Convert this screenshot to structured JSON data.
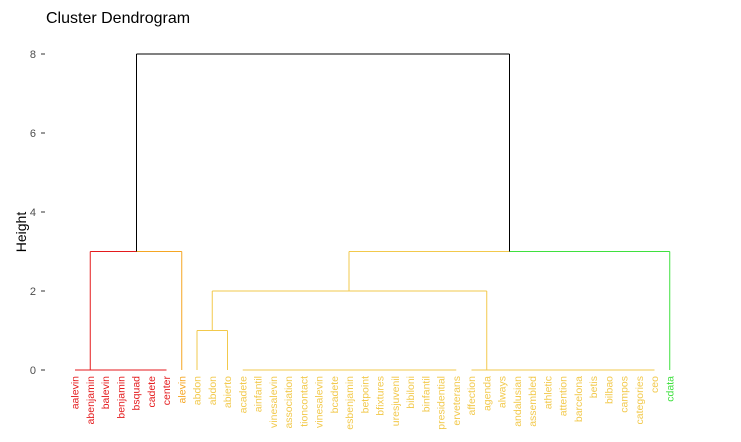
{
  "chart_data": {
    "type": "dendrogram",
    "title": "Cluster Dendrogram",
    "ylabel": "Height",
    "ylim": [
      0,
      8
    ],
    "y_ticks": [
      0,
      2,
      4,
      6,
      8
    ],
    "colors": {
      "red": "#e41a1c",
      "orange": "#f5a623",
      "yellow": "#f2c94c",
      "green": "#3fe03f",
      "root": "#000000"
    },
    "leaves": [
      {
        "label": "aalevin",
        "color": "red"
      },
      {
        "label": "abenjamin",
        "color": "red"
      },
      {
        "label": "balevin",
        "color": "red"
      },
      {
        "label": "benjamin",
        "color": "red"
      },
      {
        "label": "bsquad",
        "color": "red"
      },
      {
        "label": "cadete",
        "color": "red"
      },
      {
        "label": "center",
        "color": "red"
      },
      {
        "label": "alevin",
        "color": "orange"
      },
      {
        "label": "abdon",
        "color": "yellow"
      },
      {
        "label": "abdon",
        "color": "yellow"
      },
      {
        "label": "abierto",
        "color": "yellow"
      },
      {
        "label": "acadete",
        "color": "yellow"
      },
      {
        "label": "ainfantil",
        "color": "yellow"
      },
      {
        "label": "vinesalevin",
        "color": "yellow"
      },
      {
        "label": "association",
        "color": "yellow"
      },
      {
        "label": "tioncontact",
        "color": "yellow"
      },
      {
        "label": "vinesalevin",
        "color": "yellow"
      },
      {
        "label": "bcadete",
        "color": "yellow"
      },
      {
        "label": "esbenjamin",
        "color": "yellow"
      },
      {
        "label": "betpoint",
        "color": "yellow"
      },
      {
        "label": "bfixtures",
        "color": "yellow"
      },
      {
        "label": "uresjuvenil",
        "color": "yellow"
      },
      {
        "label": "bibiloni",
        "color": "yellow"
      },
      {
        "label": "binfantil",
        "color": "yellow"
      },
      {
        "label": "presidential",
        "color": "yellow"
      },
      {
        "label": "erveterans",
        "color": "yellow"
      },
      {
        "label": "affection",
        "color": "yellow"
      },
      {
        "label": "agenda",
        "color": "yellow"
      },
      {
        "label": "always",
        "color": "yellow"
      },
      {
        "label": "andalusian",
        "color": "yellow"
      },
      {
        "label": "assembled",
        "color": "yellow"
      },
      {
        "label": "athletic",
        "color": "yellow"
      },
      {
        "label": "attention",
        "color": "yellow"
      },
      {
        "label": "barcelona",
        "color": "yellow"
      },
      {
        "label": "betis",
        "color": "yellow"
      },
      {
        "label": "bilbao",
        "color": "yellow"
      },
      {
        "label": "campos",
        "color": "yellow"
      },
      {
        "label": "categories",
        "color": "yellow"
      },
      {
        "label": "ceo",
        "color": "yellow"
      },
      {
        "label": "cdata",
        "color": "green"
      }
    ],
    "merges": [
      {
        "color": "root",
        "height": 8.0,
        "from": [
          0,
          16
        ],
        "legs": [
          [
            3.0,
            3.0
          ]
        ],
        "spans": [
          [
            3.5,
            37.2
          ]
        ]
      },
      {
        "color": "red",
        "height": 3.0,
        "legs": [
          [
            0,
            3.0
          ]
        ],
        "spans": [
          [
            1.0,
            3.5
          ]
        ]
      },
      {
        "color": "orange",
        "height": 3.0,
        "legs": [
          [
            0,
            3.0
          ]
        ],
        "spans": [
          [
            3.5,
            7.0
          ]
        ]
      },
      {
        "color": "yellow",
        "height": 3.0,
        "legs": [
          [
            2.0,
            3.0
          ]
        ],
        "spans": [
          [
            16.5,
            37.2
          ]
        ]
      },
      {
        "color": "green",
        "height": 3.0,
        "legs": [
          [
            0,
            3.0
          ]
        ],
        "spans": [
          [
            37.2,
            39.0
          ]
        ]
      }
    ]
  }
}
